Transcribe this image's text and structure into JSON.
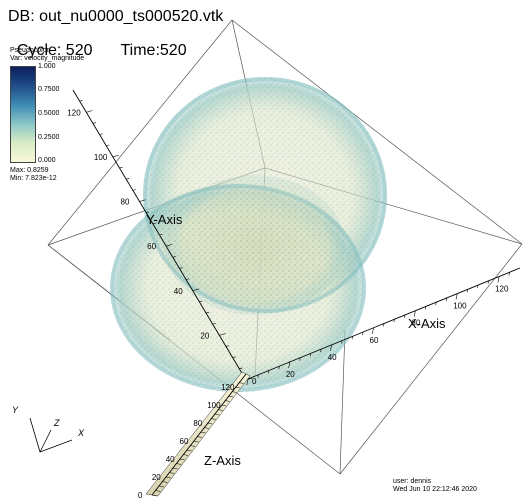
{
  "header": {
    "db_label": "DB: out_nu0000_ts000520.vtk",
    "cycle_label": "Cycle: 520",
    "time_label": "Time:520"
  },
  "legend": {
    "plot_type": "Pseudocolor",
    "variable": "Var: velocity_magnitude",
    "ticks": [
      "1.000",
      "0.7500",
      "0.5000",
      "0.2500",
      "0.000"
    ],
    "max_label": "Max: 0.8259",
    "min_label": "Min: 7.823e-12",
    "colors": [
      "#0b1f5c",
      "#1f4e8a",
      "#3d8bb3",
      "#8cc7c8",
      "#d9ecc4",
      "#f7f8d8"
    ]
  },
  "axes": {
    "x_title": "X-Axis",
    "y_title": "Y-Axis",
    "z_title": "Z-Axis",
    "x_ticks": [
      "20",
      "40",
      "60",
      "80",
      "100",
      "120"
    ],
    "y_ticks": [
      "20",
      "40",
      "60",
      "80",
      "100",
      "120"
    ],
    "z_ticks": [
      "0",
      "20",
      "40",
      "60",
      "80",
      "100",
      "120"
    ],
    "origin_label": "0"
  },
  "triad": {
    "x": "X",
    "y": "Y",
    "z": "Z"
  },
  "user_info": {
    "user": "user: dennis",
    "date": "Wed Jun 10 22:12:46 2020"
  }
}
